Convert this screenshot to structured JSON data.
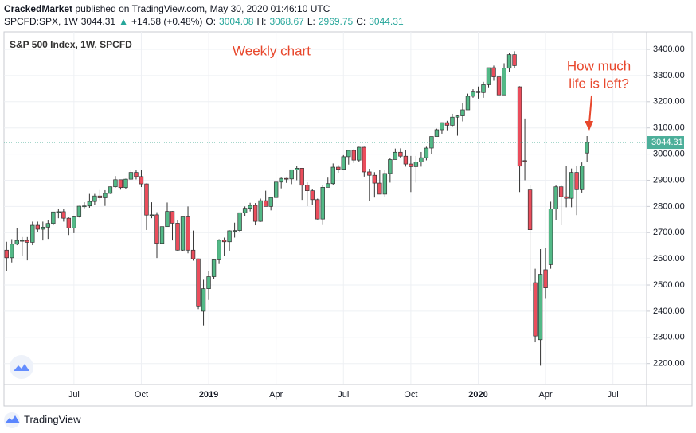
{
  "header": {
    "author": "CrackedMarket",
    "published": "published on TradingView.com, May 30, 2020 01:46:10 UTC",
    "symbol": "SPCFD:SPX, 1W",
    "price": "3044.31",
    "arrow": "▲",
    "change": "+14.58 (+0.48%)",
    "o_label": "O:",
    "o_value": "3004.08",
    "h_label": "H:",
    "h_value": "3068.67",
    "l_label": "L:",
    "l_value": "2969.75",
    "c_label": "C:",
    "c_value": "3044.31"
  },
  "footer": {
    "brand": "TradingView"
  },
  "chart_data": {
    "type": "candlestick",
    "legend_title": "S&P 500 Index, 1W, SPCFD",
    "annotations": [
      "Weekly chart",
      "How much",
      "life is left?"
    ],
    "categories": [
      null,
      null,
      null,
      null,
      null,
      null,
      null,
      null,
      null,
      null,
      null,
      null,
      null,
      "Jul",
      null,
      null,
      null,
      null,
      null,
      null,
      null,
      null,
      null,
      null,
      null,
      null,
      "Oct",
      null,
      null,
      null,
      null,
      null,
      null,
      null,
      null,
      null,
      null,
      null,
      null,
      "2019",
      null,
      null,
      null,
      null,
      null,
      null,
      null,
      null,
      null,
      null,
      null,
      null,
      "Apr",
      null,
      null,
      null,
      null,
      null,
      null,
      null,
      null,
      null,
      null,
      null,
      null,
      "Jul",
      null,
      null,
      null,
      null,
      null,
      null,
      null,
      null,
      null,
      null,
      null,
      null,
      "Oct",
      null,
      null,
      null,
      null,
      null,
      null,
      null,
      null,
      null,
      null,
      null,
      null,
      "2020",
      null,
      null,
      null,
      null,
      null,
      null,
      null,
      null,
      null,
      null,
      null,
      null,
      "Apr",
      null,
      null,
      null,
      null,
      null,
      null,
      null,
      null,
      null,
      null,
      null,
      null,
      "Jul",
      null,
      null,
      null,
      null,
      null,
      null
    ],
    "open": [
      2633,
      2604,
      2656,
      2670,
      2670,
      2663,
      2728,
      2713,
      2721,
      2735,
      2779,
      2780,
      2755,
      2718,
      2760,
      2801,
      2802,
      2819,
      2840,
      2833,
      2850,
      2875,
      2902,
      2872,
      2904,
      2930,
      2914,
      2886,
      2767,
      2768,
      2659,
      2723,
      2781,
      2736,
      2633,
      2760,
      2633,
      2600,
      2400,
      2486,
      2532,
      2596,
      2671,
      2665,
      2707,
      2708,
      2776,
      2793,
      2804,
      2743,
      2822,
      2800,
      2834,
      2893,
      2907,
      2905,
      2940,
      2946,
      2881,
      2860,
      2826,
      2752,
      2873,
      2887,
      2950,
      2942,
      2990,
      3014,
      2977,
      3026,
      2932,
      2919,
      2889,
      2847,
      2926,
      2979,
      3007,
      2992,
      2962,
      2952,
      2970,
      2986,
      3023,
      3067,
      3093,
      3120,
      3110,
      3141,
      3146,
      3169,
      3221,
      3240,
      3235,
      3265,
      3330,
      3295,
      3226,
      3328,
      3380,
      3257,
      2975,
      2863,
      2509,
      2291,
      2558,
      2578,
      2790,
      2875,
      2837,
      2831,
      2930,
      2864,
      3004.08,
      null,
      null,
      null,
      null,
      null,
      null,
      null,
      null,
      null,
      null,
      null
    ],
    "high": [
      2665,
      2675,
      2718,
      2683,
      2683,
      2742,
      2742,
      2742,
      2747,
      2779,
      2790,
      2790,
      2758,
      2764,
      2802,
      2816,
      2848,
      2848,
      2863,
      2862,
      2876,
      2916,
      2903,
      2906,
      2941,
      2940,
      2940,
      2888,
      2816,
      2778,
      2745,
      2815,
      2782,
      2747,
      2760,
      2800,
      2708,
      2601,
      2520,
      2554,
      2597,
      2675,
      2681,
      2709,
      2738,
      2776,
      2800,
      2814,
      2813,
      2830,
      2860,
      2836,
      2894,
      2910,
      2909,
      2940,
      2954,
      2946,
      2892,
      2868,
      2830,
      2880,
      2910,
      2964,
      2958,
      2996,
      3014,
      3018,
      3028,
      3028,
      2944,
      2931,
      2940,
      2940,
      2985,
      3021,
      3022,
      3016,
      2993,
      2993,
      3008,
      3028,
      3067,
      3097,
      3121,
      3127,
      3154,
      3150,
      3196,
      3231,
      3248,
      3258,
      3276,
      3330,
      3338,
      3306,
      3347,
      3385,
      3393,
      3259,
      3136,
      2882,
      2562,
      2637,
      2641,
      2818,
      2880,
      2880,
      2955,
      2945,
      2955,
      2968,
      3068.67,
      null,
      null,
      null,
      null,
      null,
      null,
      null,
      null,
      null,
      null,
      null
    ],
    "low": [
      2553,
      2586,
      2652,
      2612,
      2594,
      2652,
      2701,
      2670,
      2676,
      2728,
      2755,
      2742,
      2691,
      2698,
      2758,
      2793,
      2795,
      2805,
      2824,
      2802,
      2848,
      2872,
      2864,
      2868,
      2901,
      2903,
      2874,
      2710,
      2755,
      2603,
      2604,
      2722,
      2670,
      2631,
      2631,
      2621,
      2593,
      2408,
      2346,
      2443,
      2524,
      2580,
      2612,
      2631,
      2681,
      2703,
      2764,
      2781,
      2728,
      2741,
      2800,
      2785,
      2834,
      2869,
      2890,
      2885,
      2900,
      2825,
      2801,
      2805,
      2750,
      2729,
      2873,
      2883,
      2929,
      2942,
      2960,
      2966,
      2970,
      2914,
      2822,
      2834,
      2847,
      2836,
      2891,
      2979,
      2985,
      2952,
      2855,
      2891,
      2952,
      2976,
      3000,
      3067,
      3078,
      3091,
      3106,
      3070,
      3125,
      3169,
      3215,
      3212,
      3215,
      3255,
      3280,
      3214,
      3226,
      3315,
      3328,
      2855,
      2900,
      2478,
      2281,
      2192,
      2447,
      2562,
      2749,
      2728,
      2797,
      2797,
      2767,
      2853,
      2969.75,
      null,
      null,
      null,
      null,
      null,
      null,
      null,
      null,
      null,
      null,
      null
    ],
    "close": [
      2604,
      2656,
      2670,
      2670,
      2663,
      2728,
      2713,
      2721,
      2735,
      2779,
      2780,
      2755,
      2718,
      2760,
      2801,
      2802,
      2819,
      2840,
      2833,
      2850,
      2875,
      2902,
      2872,
      2904,
      2930,
      2914,
      2886,
      2767,
      2768,
      2659,
      2723,
      2781,
      2736,
      2633,
      2760,
      2633,
      2600,
      2417,
      2486,
      2532,
      2596,
      2671,
      2665,
      2707,
      2708,
      2776,
      2793,
      2804,
      2743,
      2822,
      2800,
      2834,
      2893,
      2907,
      2905,
      2940,
      2946,
      2881,
      2860,
      2826,
      2752,
      2873,
      2887,
      2950,
      2942,
      2990,
      3014,
      2977,
      3026,
      2932,
      2919,
      2889,
      2847,
      2926,
      2979,
      3007,
      2992,
      2962,
      2952,
      2970,
      2986,
      3023,
      3067,
      3093,
      3120,
      3110,
      3141,
      3146,
      3169,
      3221,
      3240,
      3235,
      3265,
      3330,
      3295,
      3226,
      3328,
      3380,
      3338,
      2954,
      2972,
      2711,
      2305,
      2541,
      2489,
      2790,
      2875,
      2837,
      2831,
      2930,
      2864,
      2955,
      3044.31,
      null,
      null,
      null,
      null,
      null,
      null,
      null,
      null,
      null,
      null,
      null
    ],
    "up_color": "#53b987",
    "down_color": "#eb4d5c",
    "wick_color": "#333333",
    "annotation_color": "#e8472c",
    "last_price": 3044.31,
    "last_price_color": "#4caf9a",
    "ylim": [
      2120,
      3467
    ],
    "yticks": [
      {
        "value": 2200,
        "label": "2200.00"
      },
      {
        "value": 2300,
        "label": "2300.00"
      },
      {
        "value": 2400,
        "label": "2400.00"
      },
      {
        "value": 2500,
        "label": "2500.00"
      },
      {
        "value": 2600,
        "label": "2600.00"
      },
      {
        "value": 2700,
        "label": "2700.00"
      },
      {
        "value": 2800,
        "label": "2800.00"
      },
      {
        "value": 2900,
        "label": "2900.00"
      },
      {
        "value": 3000,
        "label": "3000.00"
      },
      {
        "value": 3100,
        "label": "3100.00"
      },
      {
        "value": 3200,
        "label": "3200.00"
      },
      {
        "value": 3300,
        "label": "3300.00"
      },
      {
        "value": 3400,
        "label": "3400.00"
      }
    ],
    "grid": true
  }
}
